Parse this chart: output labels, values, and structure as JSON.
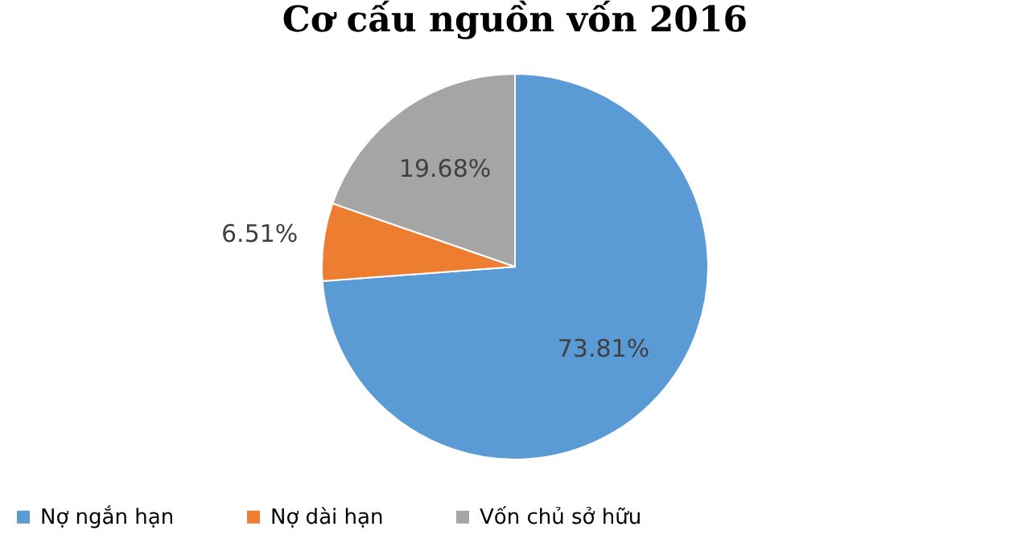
{
  "chart_data": {
    "type": "pie",
    "title": "Cơ cấu nguồn vốn 2016",
    "categories": [
      "Nợ ngắn hạn",
      "Nợ dài hạn",
      "Vốn chủ sở hữu"
    ],
    "values": [
      73.81,
      6.51,
      19.68
    ],
    "colors": [
      "#5b9bd5",
      "#ed7d31",
      "#a5a5a5"
    ],
    "value_labels": [
      "73.81%",
      "6.51%",
      "19.68%"
    ],
    "legend": "bottom"
  }
}
